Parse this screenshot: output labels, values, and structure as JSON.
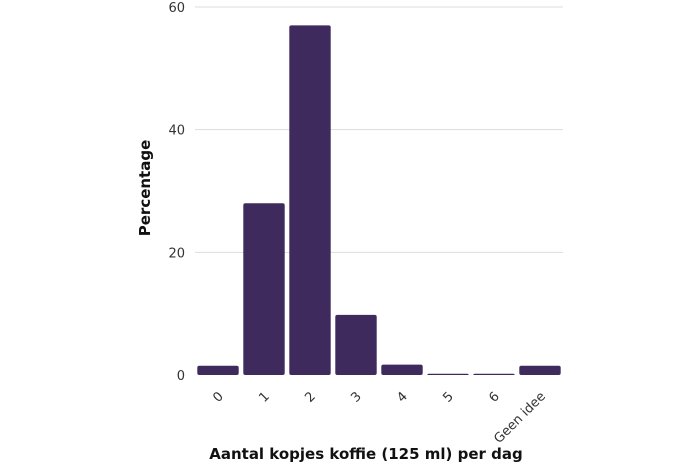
{
  "chart_data": {
    "type": "bar",
    "categories": [
      "0",
      "1",
      "2",
      "3",
      "4",
      "5",
      "6",
      "Geen idee"
    ],
    "values": [
      1.5,
      28,
      57,
      9.8,
      1.7,
      0.2,
      0.2,
      1.5
    ],
    "title": "",
    "xlabel": "Aantal kopjes koffie (125 ml) per dag",
    "ylabel": "Percentage",
    "ylim": [
      0,
      60
    ],
    "yticks": [
      0,
      20,
      40,
      60
    ],
    "grid": true,
    "legend": "none",
    "bar_color": "#3f2a5e",
    "grid_color": "#dddddd"
  }
}
